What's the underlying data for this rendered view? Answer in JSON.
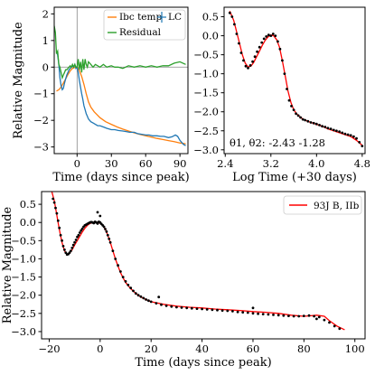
{
  "chart_data": [
    {
      "panel": "top-left",
      "type": "line",
      "title": "",
      "xlabel": "Time (days since peak)",
      "ylabel": "Relative Magnitude",
      "xlim": [
        -20,
        97
      ],
      "ylim": [
        -3.25,
        2.25
      ],
      "xticks": [
        0,
        30,
        60,
        90
      ],
      "yticks": [
        2,
        1,
        0,
        -1,
        -2,
        -3
      ],
      "vline_x": 0,
      "hline_y": 0,
      "legend": {
        "placement": "top-right",
        "entries": [
          "Ibc temp",
          "LC",
          "Residual"
        ]
      },
      "colors": {
        "Ibc temp": "#ff7f0e",
        "LC": "#1f77b4",
        "Residual": "#2ca02c"
      },
      "series": [
        {
          "name": "Ibc temp",
          "x": [
            -18,
            -16,
            -14,
            -12,
            -10,
            -8,
            -6,
            -4,
            -2,
            0,
            2,
            4,
            6,
            8,
            10,
            12,
            15,
            20,
            25,
            30,
            35,
            40,
            45,
            50,
            55,
            60,
            65,
            70,
            75,
            80,
            85,
            90,
            95
          ],
          "y": [
            -0.9,
            -0.85,
            -0.75,
            -0.6,
            -0.45,
            -0.28,
            -0.14,
            -0.05,
            -0.01,
            0.0,
            -0.12,
            -0.35,
            -0.65,
            -1.0,
            -1.3,
            -1.5,
            -1.68,
            -1.9,
            -2.05,
            -2.15,
            -2.25,
            -2.33,
            -2.4,
            -2.47,
            -2.53,
            -2.58,
            -2.63,
            -2.68,
            -2.72,
            -2.76,
            -2.8,
            -2.85,
            -2.88
          ]
        },
        {
          "name": "LC",
          "x": [
            -18,
            -17,
            -16,
            -15,
            -14,
            -13,
            -12,
            -11,
            -10,
            -9,
            -8,
            -7,
            -6,
            -5,
            -4,
            -3,
            -2,
            -1,
            0,
            1,
            2,
            3,
            4,
            5,
            6,
            7,
            8,
            9,
            10,
            12,
            14,
            16,
            18,
            20,
            23,
            26,
            30,
            33,
            36,
            40,
            43,
            46,
            50,
            53,
            56,
            60,
            63,
            66,
            70,
            73,
            76,
            80,
            83,
            86,
            88,
            90,
            93,
            95
          ],
          "y": [
            0.6,
            0.45,
            0.1,
            -0.4,
            -0.7,
            -0.85,
            -0.8,
            -0.6,
            -0.45,
            -0.3,
            -0.2,
            -0.1,
            -0.05,
            0.0,
            0.05,
            0.0,
            0.1,
            -0.05,
            0.0,
            -0.2,
            -0.5,
            -0.75,
            -1.0,
            -1.2,
            -1.45,
            -1.6,
            -1.75,
            -1.85,
            -1.95,
            -2.05,
            -2.1,
            -2.15,
            -2.2,
            -2.2,
            -2.25,
            -2.3,
            -2.35,
            -2.35,
            -2.38,
            -2.4,
            -2.42,
            -2.45,
            -2.45,
            -2.5,
            -2.52,
            -2.55,
            -2.55,
            -2.58,
            -2.58,
            -2.6,
            -2.6,
            -2.65,
            -2.62,
            -2.55,
            -2.6,
            -2.75,
            -2.9,
            -2.95
          ]
        },
        {
          "name": "Residual",
          "x": [
            -20,
            -19,
            -18,
            -17,
            -16,
            -15,
            -14,
            -13,
            -12,
            -11,
            -10,
            -9,
            -8,
            -7,
            -6,
            -5,
            -4,
            -3,
            -2,
            -1,
            0,
            1,
            2,
            3,
            4,
            5,
            6,
            7,
            8,
            9,
            10,
            12,
            14,
            16,
            18,
            20,
            23,
            26,
            30,
            33,
            36,
            40,
            45,
            50,
            55,
            60,
            65,
            70,
            75,
            80,
            85,
            90,
            95
          ],
          "y": [
            1.55,
            1.3,
            0.5,
            0.6,
            0.1,
            0.0,
            -0.2,
            -0.4,
            -0.3,
            -0.2,
            -0.1,
            -0.1,
            -0.05,
            0.0,
            0.05,
            0.0,
            0.1,
            0.0,
            0.1,
            0.0,
            0.0,
            0.3,
            -0.1,
            0.2,
            -0.2,
            0.3,
            -0.1,
            0.3,
            0.1,
            0.0,
            0.2,
            0.1,
            0.0,
            0.1,
            0.05,
            0.0,
            0.1,
            0.0,
            0.05,
            0.0,
            0.0,
            -0.05,
            0.05,
            0.0,
            0.05,
            0.0,
            0.05,
            0.0,
            0.05,
            0.05,
            0.15,
            0.2,
            0.1
          ]
        }
      ]
    },
    {
      "panel": "top-right",
      "type": "scatter",
      "title": "",
      "xlabel": "Log Time (+30 days)",
      "ylabel": "",
      "xlim": [
        2.38,
        4.85
      ],
      "ylim": [
        -3.1,
        0.75
      ],
      "xticks": [
        2.4,
        3.2,
        4.0,
        4.8
      ],
      "xticklabels": [
        "2.4",
        "3.2",
        "4.0",
        "4.8"
      ],
      "yticks": [
        0.5,
        0.0,
        -0.5,
        -1.0,
        -1.5,
        -2.0,
        -2.5,
        -3.0
      ],
      "yticklabels": [
        "0.5",
        "0.0",
        "−0.5",
        "−1.0",
        "−1.5",
        "−2.0",
        "−2.5",
        "−3.0"
      ],
      "annotation": "θ1, θ2: -2.43 -1.28",
      "colors": {
        "model": "#ff0000",
        "points": "#000000"
      },
      "series": [
        {
          "name": "",
          "kind": "model",
          "x": [
            2.48,
            2.55,
            2.6,
            2.65,
            2.7,
            2.75,
            2.8,
            2.85,
            2.9,
            2.95,
            3.0,
            3.05,
            3.1,
            3.15,
            3.2,
            3.25,
            3.3,
            3.35,
            3.4,
            3.45,
            3.5,
            3.55,
            3.6,
            3.65,
            3.7,
            3.75,
            3.8,
            3.85,
            3.9,
            4.0,
            4.1,
            4.2,
            4.3,
            4.4,
            4.5,
            4.6,
            4.7,
            4.8
          ],
          "y": [
            0.65,
            0.4,
            0.1,
            -0.2,
            -0.5,
            -0.72,
            -0.82,
            -0.8,
            -0.7,
            -0.55,
            -0.4,
            -0.25,
            -0.12,
            -0.03,
            0.02,
            0.0,
            -0.1,
            -0.3,
            -0.65,
            -1.05,
            -1.45,
            -1.75,
            -1.95,
            -2.05,
            -2.12,
            -2.18,
            -2.22,
            -2.25,
            -2.28,
            -2.33,
            -2.38,
            -2.45,
            -2.5,
            -2.55,
            -2.6,
            -2.65,
            -2.75,
            -2.88
          ]
        },
        {
          "name": "",
          "kind": "points",
          "x": [
            2.48,
            2.52,
            2.56,
            2.6,
            2.64,
            2.68,
            2.72,
            2.76,
            2.8,
            2.84,
            2.88,
            2.92,
            2.96,
            3.0,
            3.04,
            3.08,
            3.12,
            3.16,
            3.2,
            3.24,
            3.28,
            3.32,
            3.36,
            3.4,
            3.44,
            3.48,
            3.52,
            3.56,
            3.6,
            3.64,
            3.68,
            3.72,
            3.76,
            3.8,
            3.85,
            3.9,
            3.95,
            4.0,
            4.05,
            4.1,
            4.15,
            4.2,
            4.25,
            4.3,
            4.35,
            4.4,
            4.45,
            4.5,
            4.55,
            4.6,
            4.65,
            4.7,
            4.75,
            4.8
          ],
          "y": [
            0.6,
            0.5,
            0.3,
            0.05,
            -0.2,
            -0.45,
            -0.65,
            -0.8,
            -0.85,
            -0.78,
            -0.68,
            -0.55,
            -0.42,
            -0.3,
            -0.18,
            -0.08,
            -0.02,
            0.02,
            0.0,
            0.05,
            0.0,
            -0.15,
            -0.35,
            -0.65,
            -1.0,
            -1.4,
            -1.7,
            -1.85,
            -1.95,
            -2.05,
            -2.1,
            -2.15,
            -2.2,
            -2.22,
            -2.25,
            -2.28,
            -2.3,
            -2.32,
            -2.35,
            -2.38,
            -2.4,
            -2.43,
            -2.45,
            -2.48,
            -2.5,
            -2.52,
            -2.55,
            -2.58,
            -2.6,
            -2.62,
            -2.65,
            -2.7,
            -2.8,
            -2.9
          ]
        }
      ]
    },
    {
      "panel": "bottom",
      "type": "scatter",
      "title": "",
      "xlabel": "Time (days since peak)",
      "ylabel": "Relative Magnitude",
      "xlim": [
        -23,
        104
      ],
      "ylim": [
        -3.2,
        0.85
      ],
      "xticks": [
        -20,
        0,
        20,
        40,
        60,
        80,
        100
      ],
      "yticks": [
        0.5,
        0.0,
        -0.5,
        -1.0,
        -1.5,
        -2.0,
        -2.5,
        -3.0
      ],
      "yticklabels": [
        "0.5",
        "0.0",
        "−0.5",
        "−1.0",
        "−1.5",
        "−2.0",
        "−2.5",
        "−3.0"
      ],
      "legend": {
        "placement": "top-right",
        "entries": [
          "93J B, IIb"
        ]
      },
      "colors": {
        "93J B, IIb": "#ff0000",
        "points": "#000000"
      },
      "series": [
        {
          "name": "93J B, IIb",
          "kind": "model",
          "x": [
            -19,
            -18,
            -17,
            -16,
            -15,
            -14,
            -13,
            -12,
            -11,
            -10,
            -9,
            -8,
            -7,
            -6,
            -5,
            -4,
            -3,
            -2,
            -1,
            0,
            1,
            2,
            3,
            4,
            5,
            6,
            7,
            8,
            9,
            10,
            12,
            14,
            16,
            18,
            20,
            25,
            30,
            35,
            40,
            45,
            50,
            55,
            60,
            65,
            70,
            75,
            80,
            82,
            85,
            88,
            90,
            93,
            96
          ],
          "y": [
            0.85,
            0.6,
            0.2,
            -0.2,
            -0.55,
            -0.78,
            -0.88,
            -0.85,
            -0.75,
            -0.62,
            -0.5,
            -0.38,
            -0.26,
            -0.16,
            -0.08,
            -0.03,
            0.0,
            0.01,
            0.0,
            -0.02,
            -0.08,
            -0.18,
            -0.35,
            -0.55,
            -0.78,
            -1.0,
            -1.2,
            -1.38,
            -1.52,
            -1.65,
            -1.82,
            -1.95,
            -2.05,
            -2.12,
            -2.18,
            -2.25,
            -2.3,
            -2.33,
            -2.35,
            -2.38,
            -2.4,
            -2.42,
            -2.45,
            -2.47,
            -2.5,
            -2.55,
            -2.58,
            -2.57,
            -2.55,
            -2.58,
            -2.7,
            -2.85,
            -2.95
          ]
        },
        {
          "name": "",
          "kind": "points",
          "x": [
            -18.5,
            -18,
            -17.5,
            -17,
            -16.5,
            -16,
            -15.5,
            -15,
            -14.5,
            -14,
            -13.5,
            -13,
            -12.5,
            -12,
            -11.5,
            -11,
            -10.5,
            -10,
            -9.5,
            -9,
            -8.5,
            -8,
            -7.5,
            -7,
            -6.5,
            -6,
            -5.5,
            -5,
            -4.5,
            -4,
            -3.5,
            -3,
            -2.5,
            -2,
            -1.5,
            -1,
            -0.5,
            0,
            0.5,
            1,
            1.5,
            2,
            2.5,
            3,
            3.5,
            4,
            5,
            6,
            7,
            8,
            9,
            10,
            11,
            12,
            13,
            14,
            15,
            16,
            17,
            18,
            19,
            20,
            22,
            24,
            26,
            28,
            30,
            32,
            34,
            36,
            38,
            40,
            42,
            44,
            46,
            48,
            50,
            52,
            54,
            56,
            58,
            60,
            62,
            64,
            66,
            68,
            70,
            72,
            74,
            76,
            78,
            80,
            82,
            84,
            86,
            88,
            90,
            92,
            94,
            -1,
            0,
            23,
            60,
            85
          ],
          "y": [
            0.65,
            0.55,
            0.4,
            0.25,
            0.05,
            -0.15,
            -0.35,
            -0.5,
            -0.65,
            -0.75,
            -0.83,
            -0.88,
            -0.87,
            -0.83,
            -0.78,
            -0.7,
            -0.62,
            -0.55,
            -0.48,
            -0.4,
            -0.35,
            -0.28,
            -0.22,
            -0.17,
            -0.12,
            -0.08,
            -0.06,
            -0.04,
            -0.02,
            0.0,
            0.01,
            0.0,
            -0.02,
            0.02,
            0.0,
            -0.03,
            0.02,
            0.0,
            -0.04,
            -0.08,
            -0.12,
            -0.18,
            -0.25,
            -0.35,
            -0.45,
            -0.55,
            -0.78,
            -1.0,
            -1.18,
            -1.35,
            -1.5,
            -1.62,
            -1.72,
            -1.8,
            -1.88,
            -1.95,
            -2.0,
            -2.04,
            -2.08,
            -2.12,
            -2.15,
            -2.18,
            -2.22,
            -2.26,
            -2.29,
            -2.31,
            -2.33,
            -2.34,
            -2.35,
            -2.36,
            -2.37,
            -2.38,
            -2.39,
            -2.4,
            -2.41,
            -2.42,
            -2.43,
            -2.44,
            -2.46,
            -2.47,
            -2.48,
            -2.5,
            -2.51,
            -2.52,
            -2.53,
            -2.54,
            -2.55,
            -2.56,
            -2.57,
            -2.58,
            -2.58,
            -2.57,
            -2.56,
            -2.58,
            -2.6,
            -2.68,
            -2.75,
            -2.85,
            -2.92,
            0.28,
            0.18,
            -2.05,
            -2.35,
            -2.65
          ]
        }
      ]
    }
  ]
}
